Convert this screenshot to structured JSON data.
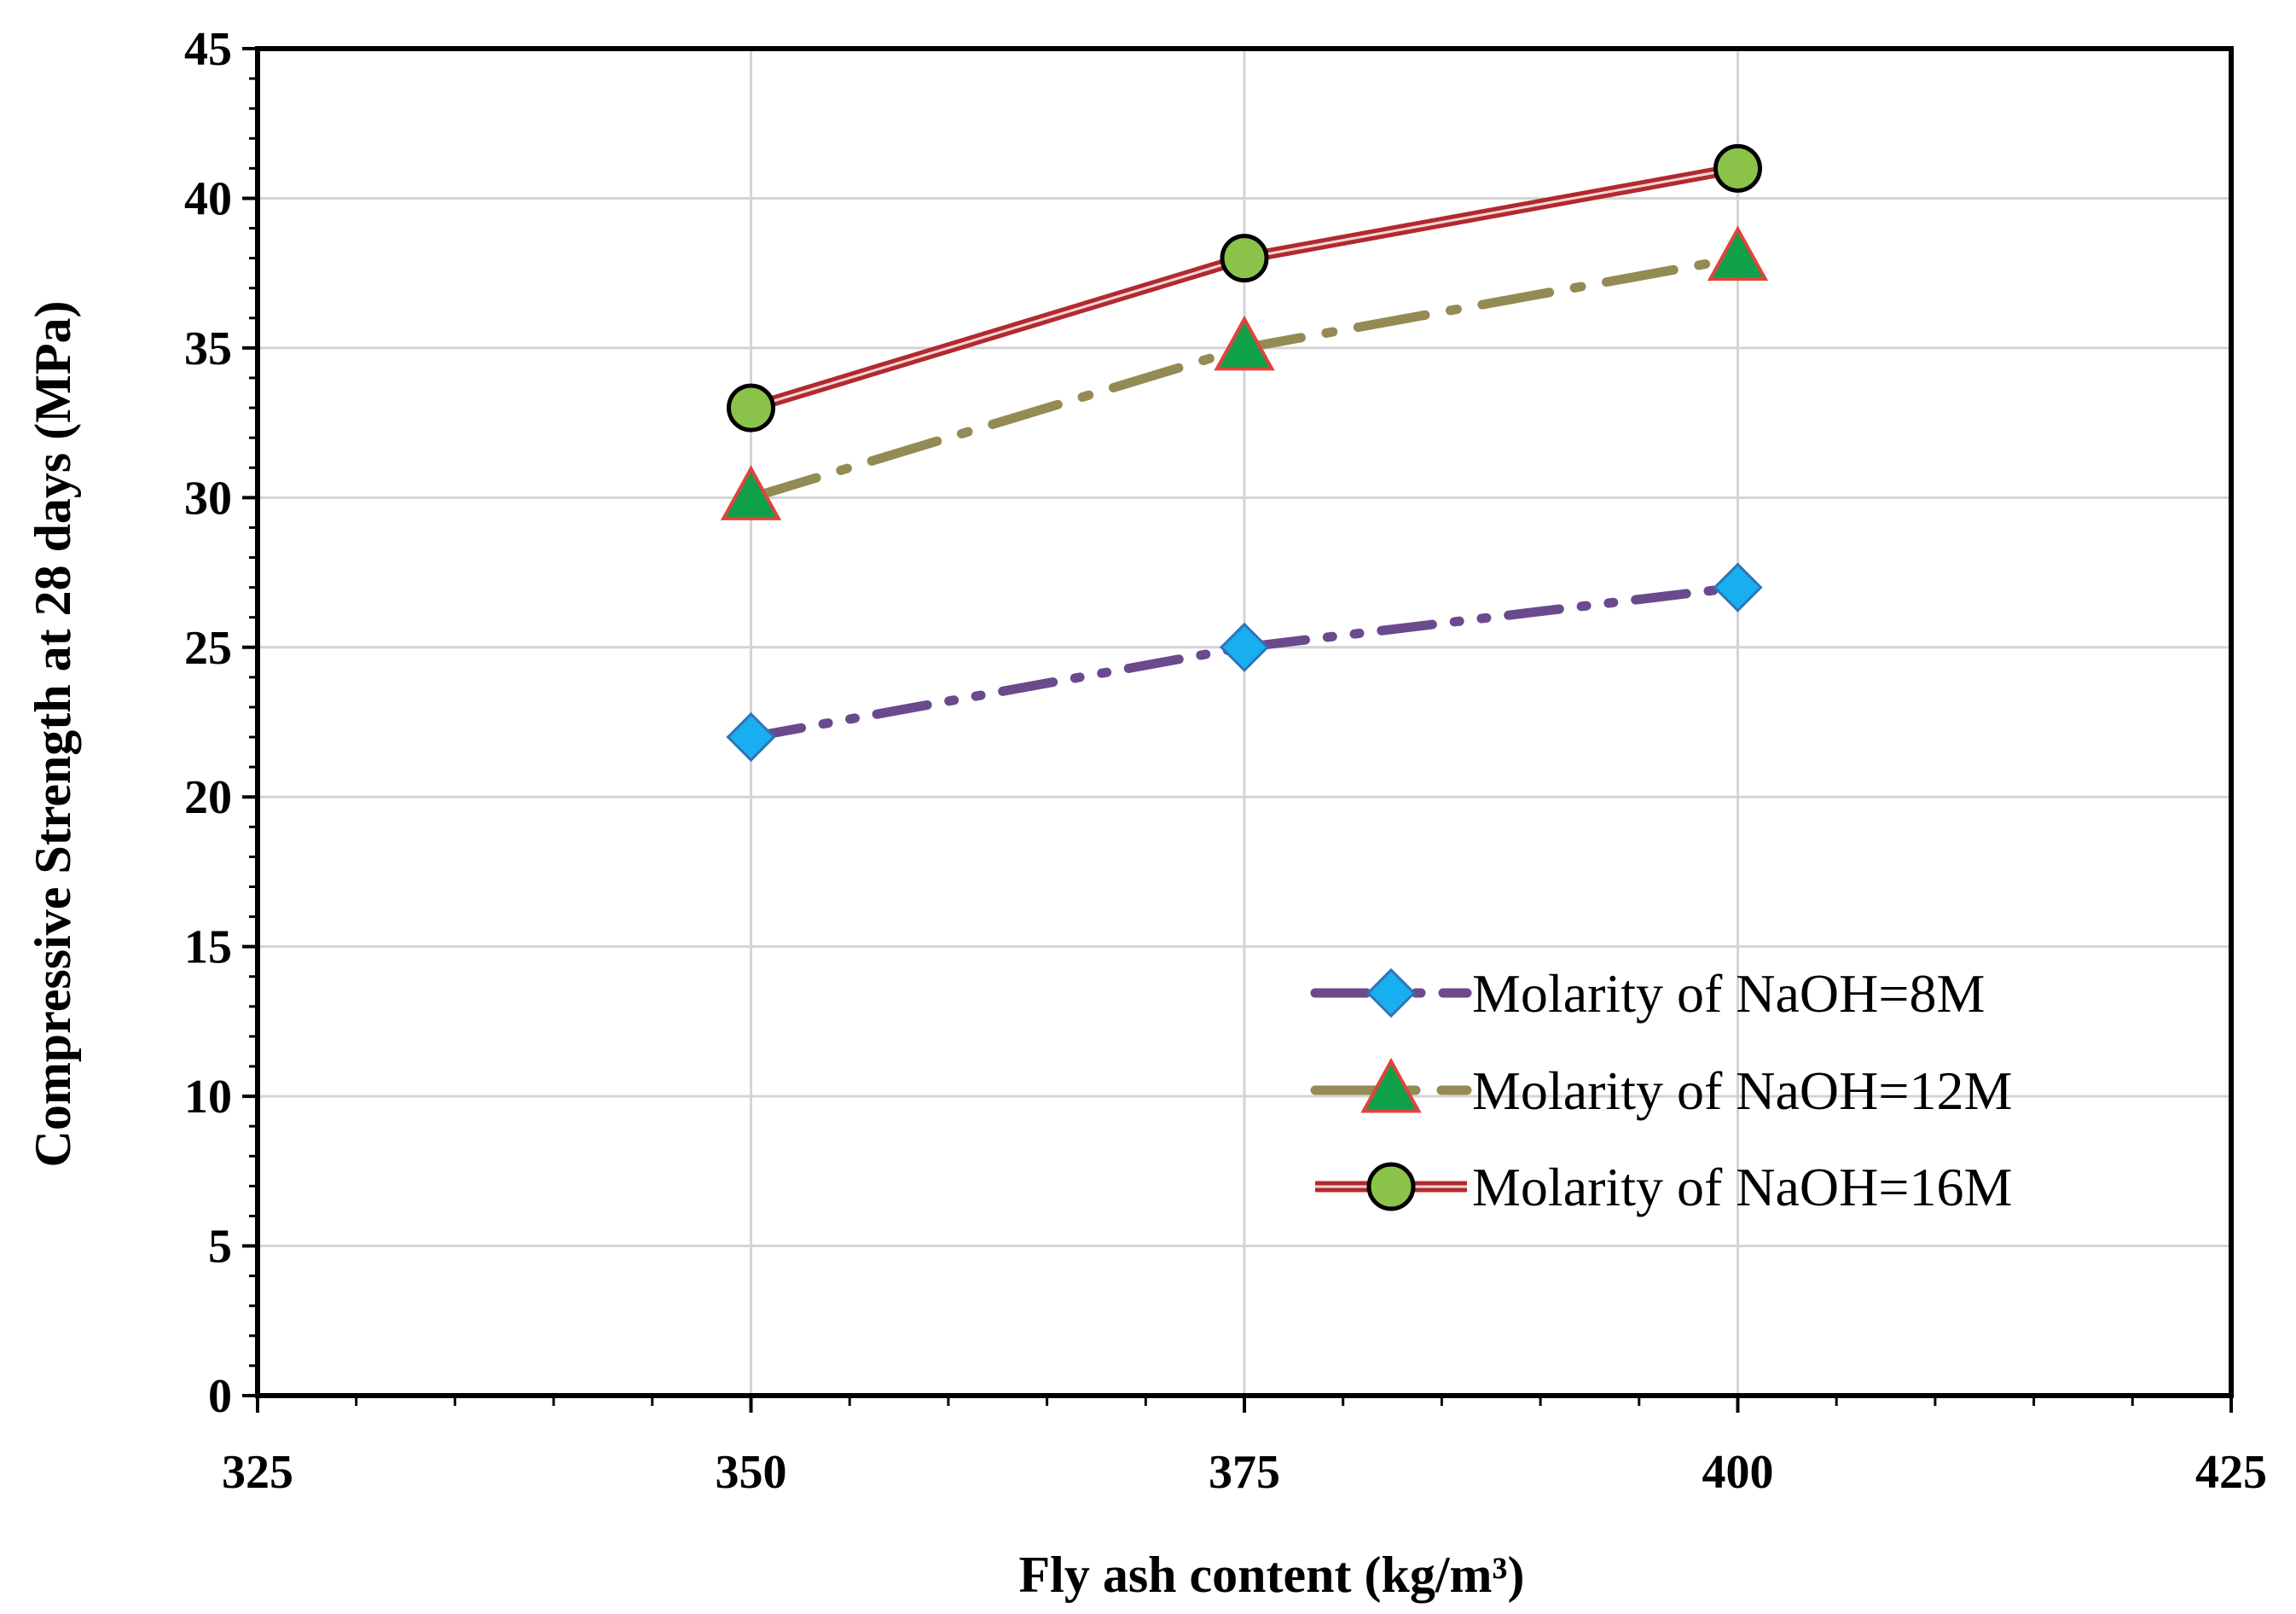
{
  "chart_data": {
    "type": "line",
    "title": "",
    "xlabel": "Fly ash content (kg/m³)",
    "ylabel": "Compressive Strength at 28 days (MPa)",
    "xlim": [
      325,
      425
    ],
    "ylim": [
      0,
      45
    ],
    "x_major_ticks": [
      325,
      350,
      375,
      400,
      425
    ],
    "y_major_ticks": [
      0,
      5,
      10,
      15,
      20,
      25,
      30,
      35,
      40,
      45
    ],
    "x_tick_labels": [
      "325",
      "350",
      "375",
      "400",
      "425"
    ],
    "y_tick_labels": [
      "0",
      "5",
      "10",
      "15",
      "20",
      "25",
      "30",
      "35",
      "40",
      "45"
    ],
    "grid": true,
    "legend_position": "bottom-right",
    "series": [
      {
        "name": "Molarity of NaOH=8M",
        "x": [
          350,
          375,
          400
        ],
        "y": [
          22,
          25,
          27
        ],
        "line_color": "#6A4A8C",
        "line_style": "dash-dot-dot",
        "marker": "diamond",
        "marker_fill": "#19AEEF",
        "marker_edge": "#2E75B6"
      },
      {
        "name": "Molarity of NaOH=12M",
        "x": [
          350,
          375,
          400
        ],
        "y": [
          30,
          35,
          38
        ],
        "line_color": "#948A54",
        "line_style": "dash-dot",
        "marker": "triangle",
        "marker_fill": "#0FA04A",
        "marker_edge": "#E0443A"
      },
      {
        "name": "Molarity of NaOH=16M",
        "x": [
          350,
          375,
          400
        ],
        "y": [
          33,
          38,
          41
        ],
        "line_color": "#B22A2E",
        "line_style": "double",
        "marker": "circle",
        "marker_fill": "#8BC34A",
        "marker_edge": "#000000"
      }
    ]
  }
}
